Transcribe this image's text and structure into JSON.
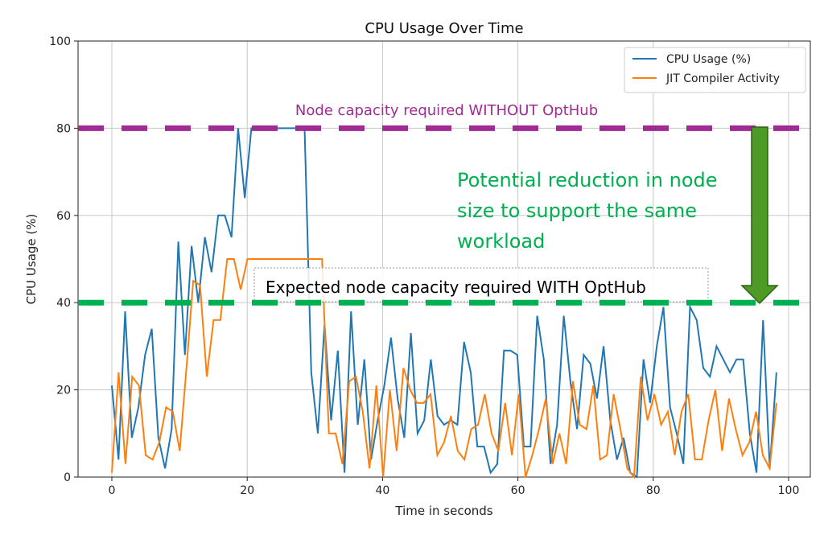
{
  "chart_data": {
    "type": "line",
    "title": "CPU Usage Over Time",
    "xlabel": "Time in seconds",
    "ylabel": "CPU Usage (%)",
    "xlim": [
      -5,
      104
    ],
    "ylim": [
      0,
      100
    ],
    "xticks": [
      "0",
      "20",
      "40",
      "60",
      "80",
      "100"
    ],
    "yticks": [
      "0",
      "20",
      "40",
      "60",
      "80",
      "100"
    ],
    "grid": true,
    "legend_position": "top-right",
    "series": [
      {
        "name": "CPU Usage (%)",
        "color": "#1f77b4",
        "values": [
          21,
          4,
          38,
          9,
          16,
          28,
          34,
          9,
          2,
          11,
          54,
          28,
          53,
          40,
          55,
          47,
          60,
          60,
          55,
          80,
          64,
          80,
          80,
          80,
          80,
          80,
          80,
          80,
          80,
          80,
          24,
          10,
          35,
          13,
          29,
          1,
          38,
          12,
          27,
          4,
          13,
          21,
          32,
          18,
          9,
          33,
          10,
          13,
          27,
          14,
          12,
          13,
          12,
          31,
          24,
          7,
          7,
          1,
          3,
          29,
          29,
          28,
          7,
          7,
          37,
          27,
          3,
          12,
          37,
          22,
          11,
          28,
          26,
          18,
          30,
          13,
          4,
          9,
          1,
          0,
          27,
          17,
          30,
          39,
          16,
          10,
          3,
          39,
          36,
          25,
          23,
          30,
          27,
          24,
          27,
          27,
          10,
          1,
          36,
          2,
          24
        ]
      },
      {
        "name": "JIT Compiler Activity",
        "color": "#ff7f0e",
        "values": [
          1,
          24,
          3,
          23,
          21,
          5,
          4,
          8,
          16,
          15,
          6,
          25,
          45,
          44,
          23,
          36,
          36,
          50,
          50,
          43,
          50,
          50,
          50,
          50,
          50,
          50,
          50,
          50,
          50,
          50,
          50,
          50,
          10,
          10,
          3,
          22,
          23,
          15,
          2,
          21,
          0,
          20,
          6,
          25,
          20,
          17,
          17,
          19,
          5,
          8,
          14,
          6,
          4,
          11,
          12,
          19,
          10,
          6,
          17,
          5,
          19,
          0,
          5,
          11,
          18,
          3,
          10,
          3,
          22,
          12,
          11,
          21,
          4,
          5,
          19,
          11,
          2,
          0,
          23,
          13,
          19,
          12,
          15,
          5,
          15,
          19,
          4,
          4,
          13,
          20,
          6,
          18,
          11,
          5,
          8,
          15,
          5,
          2,
          17
        ]
      }
    ],
    "annotations": {
      "without_label": "Node capacity required WITHOUT OptHub",
      "without_value": 80,
      "without_color": "#a02b93",
      "with_label": "Expected node capacity required WITH OptHub",
      "with_value": 40,
      "with_color": "#00b050",
      "reduction_text": [
        "Potential reduction in node",
        "size to support the same",
        "workload"
      ],
      "arrow_color": "#4e9a26"
    }
  }
}
